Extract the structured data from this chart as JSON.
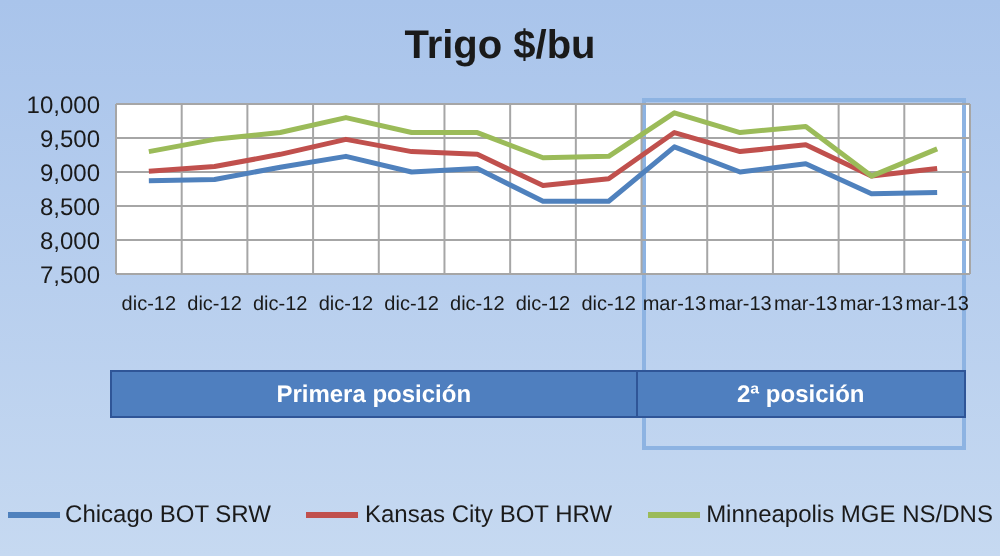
{
  "chart_data": {
    "type": "line",
    "title": "Trigo $/bu",
    "categories": [
      "dic-12",
      "dic-12",
      "dic-12",
      "dic-12",
      "dic-12",
      "dic-12",
      "dic-12",
      "dic-12",
      "mar-13",
      "mar-13",
      "mar-13",
      "mar-13",
      "mar-13"
    ],
    "series": [
      {
        "name": "Chicago BOT SRW",
        "color": "#4f81bd",
        "values": [
          8870,
          8890,
          9070,
          9230,
          9000,
          9050,
          8570,
          8570,
          9370,
          9000,
          9120,
          8680,
          8700
        ]
      },
      {
        "name": "Kansas City BOT HRW",
        "color": "#c0504d",
        "values": [
          9010,
          9080,
          9260,
          9480,
          9300,
          9260,
          8800,
          8900,
          9580,
          9300,
          9400,
          8940,
          9050
        ]
      },
      {
        "name": "Minneapolis MGE NS/DNS",
        "color": "#9bbb59",
        "values": [
          9300,
          9480,
          9580,
          9800,
          9580,
          9580,
          9210,
          9230,
          9870,
          9580,
          9670,
          8940,
          9340
        ]
      }
    ],
    "ylim": [
      7500,
      10000
    ],
    "yticks": [
      {
        "value": 7500,
        "label": "7,500"
      },
      {
        "value": 8000,
        "label": "8,000"
      },
      {
        "value": 8500,
        "label": "8,500"
      },
      {
        "value": 9000,
        "label": "9,000"
      },
      {
        "value": 9500,
        "label": "9,500"
      },
      {
        "value": 10000,
        "label": "10,000"
      }
    ],
    "annotations": [
      "Primera posición",
      "2ª posición"
    ],
    "grid": true,
    "legend": "bottom",
    "marker": "none",
    "line_style": "solid"
  }
}
